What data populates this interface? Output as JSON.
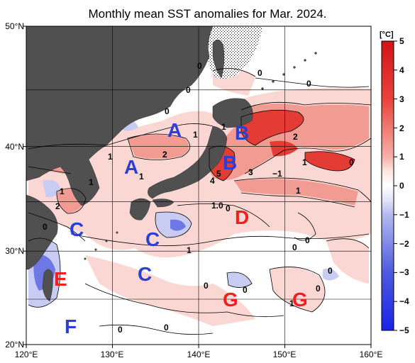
{
  "title": "Monthly mean SST anomalies for Mar. 2024.",
  "unit": "[°C]",
  "lat_labels": [
    "50°N",
    "40°N",
    "30°N",
    "20°N"
  ],
  "lon_labels": [
    "120°E",
    "130°E",
    "140°E",
    "150°E",
    "160°E"
  ],
  "colorbar": {
    "ticks": [
      "5",
      "4",
      "3",
      "2",
      "1",
      "0",
      "−1",
      "−2",
      "−3",
      "−4",
      "−5"
    ],
    "warm_color": "#dd1f26",
    "cold_color": "#1a2ee6",
    "land_color": "#505050"
  },
  "regions": [
    {
      "letter": "A",
      "color": "#2a3fd8"
    },
    {
      "letter": "A",
      "color": "#2a3fd8"
    },
    {
      "letter": "B",
      "color": "#2a3fd8"
    },
    {
      "letter": "B",
      "color": "#2a3fd8"
    },
    {
      "letter": "C",
      "color": "#2a3fd8"
    },
    {
      "letter": "C",
      "color": "#2a3fd8"
    },
    {
      "letter": "C",
      "color": "#2a3fd8"
    },
    {
      "letter": "D",
      "color": "#ee2020"
    },
    {
      "letter": "E",
      "color": "#ee2020"
    },
    {
      "letter": "F",
      "color": "#2a3fd8"
    },
    {
      "letter": "G",
      "color": "#ee2020"
    },
    {
      "letter": "G",
      "color": "#ee2020"
    }
  ],
  "contour_labels": [
    "0",
    "0",
    "0",
    "0",
    "0",
    "1",
    "1",
    "1",
    "1",
    "2",
    "2",
    "1",
    "1",
    "5",
    "4",
    "3",
    "−1",
    "1",
    "2",
    "1",
    "0",
    "1.0",
    "1",
    "0",
    "0",
    "0",
    "0",
    "0",
    "0",
    "0",
    "0",
    "1",
    "0",
    "0"
  ]
}
